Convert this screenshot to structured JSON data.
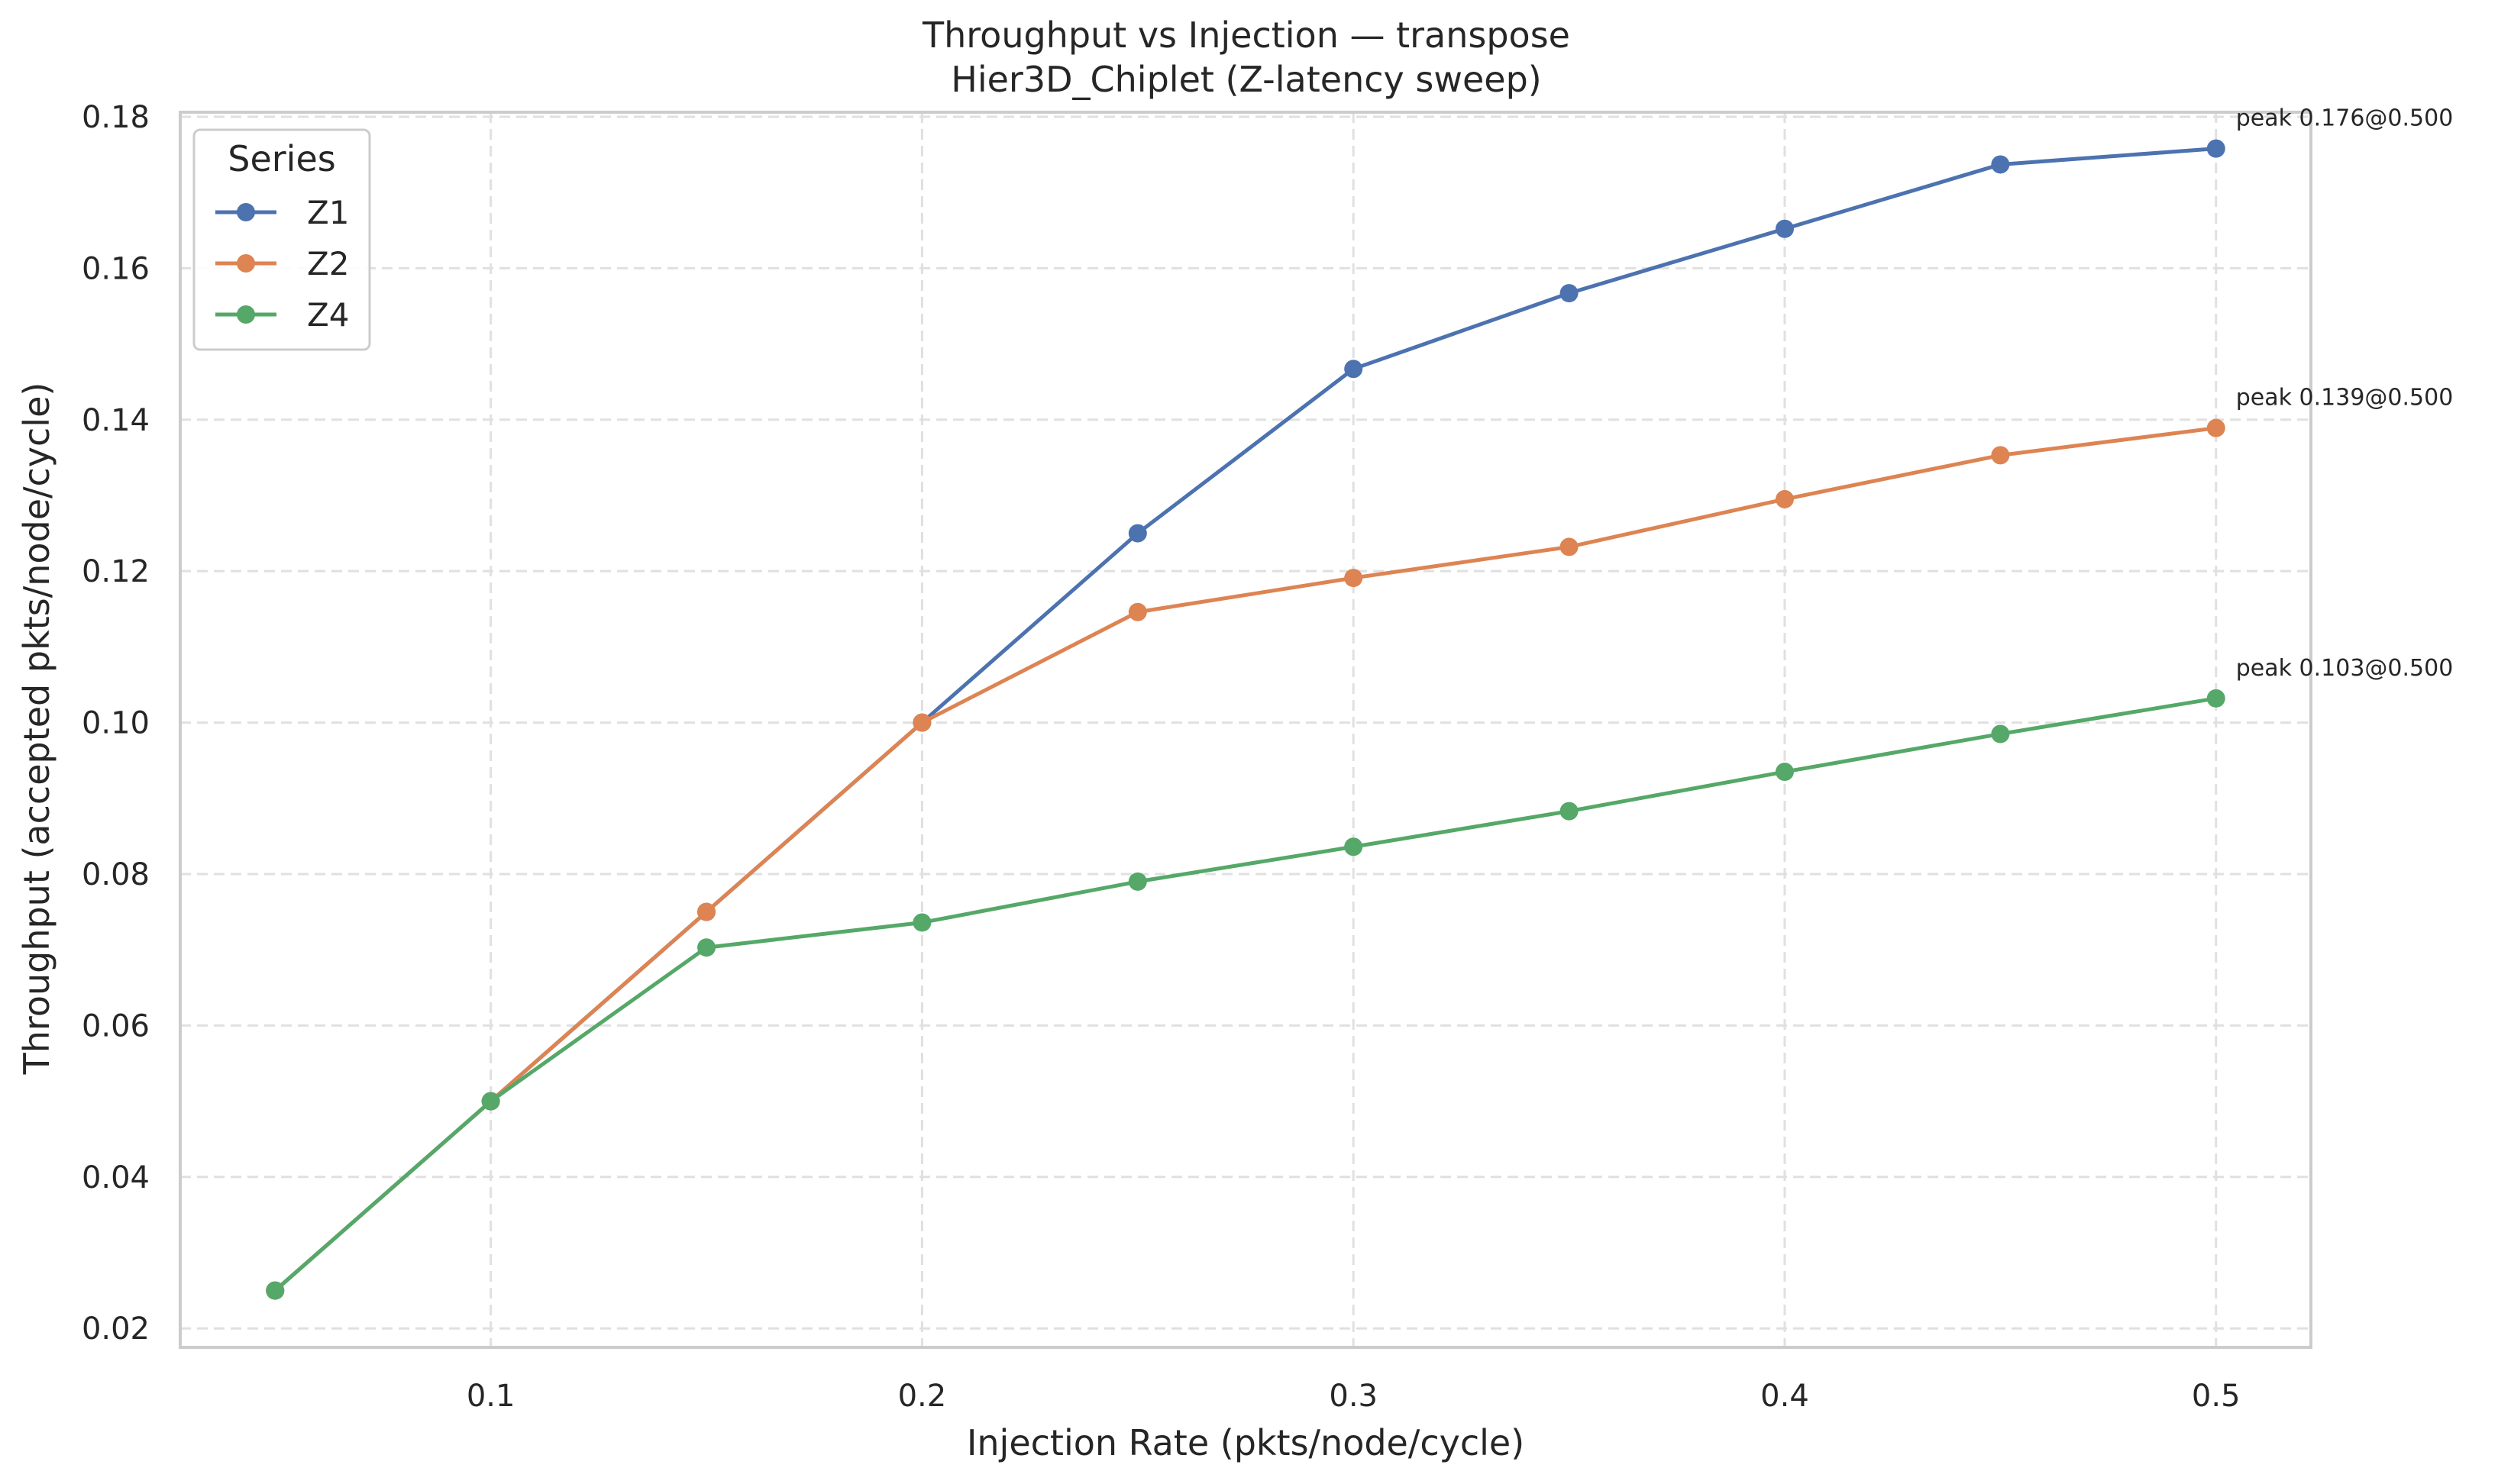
{
  "chart_data": {
    "type": "line",
    "title": "Throughput vs Injection — transpose",
    "subtitle": "Hier3D_Chiplet (Z-latency sweep)",
    "xlabel": "Injection Rate (pkts/node/cycle)",
    "ylabel": "Throughput (accepted pkts/node/cycle)",
    "xlim": [
      0.028,
      0.522
    ],
    "ylim": [
      0.0175,
      0.1806
    ],
    "xticks": [
      0.1,
      0.2,
      0.3,
      0.4,
      0.5
    ],
    "xtick_labels": [
      "0.1",
      "0.2",
      "0.3",
      "0.4",
      "0.5"
    ],
    "yticks": [
      0.02,
      0.04,
      0.06,
      0.08,
      0.1,
      0.12,
      0.14,
      0.16,
      0.18
    ],
    "ytick_labels": [
      "0.02",
      "0.04",
      "0.06",
      "0.08",
      "0.10",
      "0.12",
      "0.14",
      "0.16",
      "0.18"
    ],
    "grid": true,
    "legend": {
      "title": "Series",
      "placement": "top-left"
    },
    "series": [
      {
        "name": "Z1",
        "color": "#4c72b0",
        "x": [
          0.05,
          0.1,
          0.15,
          0.2,
          0.25,
          0.3,
          0.35,
          0.4,
          0.45,
          0.5
        ],
        "y": [
          0.025,
          0.05,
          0.075,
          0.1,
          0.125,
          0.1467,
          0.1567,
          0.1652,
          0.1737,
          0.1758
        ],
        "annotation": "peak 0.176@0.500"
      },
      {
        "name": "Z2",
        "color": "#dd8452",
        "x": [
          0.05,
          0.1,
          0.15,
          0.2,
          0.25,
          0.3,
          0.35,
          0.4,
          0.45,
          0.5
        ],
        "y": [
          0.025,
          0.05,
          0.075,
          0.1,
          0.1146,
          0.1191,
          0.1232,
          0.1295,
          0.1353,
          0.1389
        ],
        "annotation": "peak 0.139@0.500"
      },
      {
        "name": "Z4",
        "color": "#55a868",
        "x": [
          0.05,
          0.1,
          0.15,
          0.2,
          0.25,
          0.3,
          0.35,
          0.4,
          0.45,
          0.5
        ],
        "y": [
          0.025,
          0.05,
          0.0703,
          0.0736,
          0.079,
          0.0836,
          0.0883,
          0.0935,
          0.0985,
          0.1032
        ],
        "annotation": "peak 0.103@0.500"
      }
    ]
  }
}
